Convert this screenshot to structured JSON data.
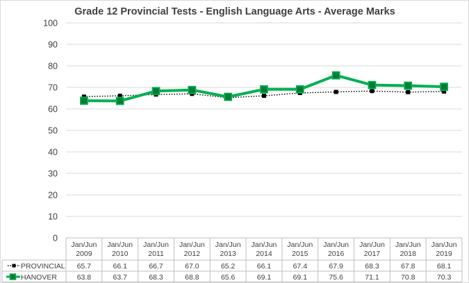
{
  "chart_data": {
    "type": "line",
    "title": "Grade 12 Provincial Tests - English Language Arts - Average Marks",
    "categories": [
      [
        "Jan/Jun",
        "2009"
      ],
      [
        "Jan/Jun",
        "2010"
      ],
      [
        "Jan/Jun",
        "2011"
      ],
      [
        "Jan/Jun",
        "2012"
      ],
      [
        "Jan/Jun",
        "2013"
      ],
      [
        "Jan/Jun",
        "2014"
      ],
      [
        "Jan/Jun",
        "2015"
      ],
      [
        "Jan/Jun",
        "2016"
      ],
      [
        "Jan/Jun",
        "2017"
      ],
      [
        "Jan/Jun",
        "2018"
      ],
      [
        "Jan/Jun",
        "2019"
      ]
    ],
    "series": [
      {
        "name": "PROVINCIAL",
        "values": [
          65.7,
          66.1,
          66.7,
          67.0,
          65.2,
          66.1,
          67.4,
          67.9,
          68.3,
          67.8,
          68.1
        ],
        "labels": [
          "65.7",
          "66.1",
          "66.7",
          "67.0",
          "65.2",
          "66.1",
          "67.4",
          "67.9",
          "68.3",
          "67.8",
          "68.1"
        ],
        "color": "#000000",
        "style": "dotted",
        "marker": "small-square"
      },
      {
        "name": "HANOVER",
        "values": [
          63.8,
          63.7,
          68.3,
          68.8,
          65.6,
          69.1,
          69.1,
          75.6,
          71.1,
          70.8,
          70.3
        ],
        "labels": [
          "63.8",
          "63.7",
          "68.3",
          "68.8",
          "65.6",
          "69.1",
          "69.1",
          "75.6",
          "71.1",
          "70.8",
          "70.3"
        ],
        "color": "#00b050",
        "marker_fill": "#007a36",
        "style": "solid",
        "marker": "large-square"
      }
    ],
    "ylim": [
      0,
      100
    ],
    "yticks": [
      "0",
      "10",
      "20",
      "30",
      "40",
      "50",
      "60",
      "70",
      "80",
      "90",
      "100"
    ],
    "grid": true,
    "legend": "data-table"
  }
}
